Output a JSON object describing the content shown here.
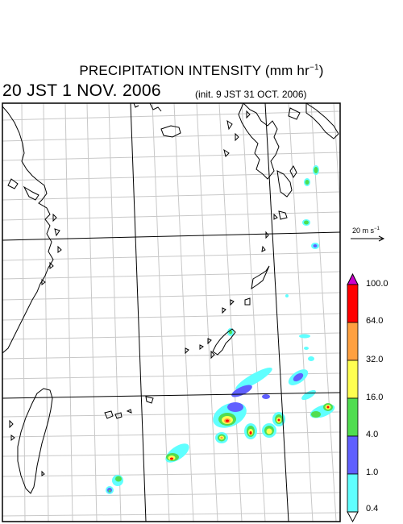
{
  "header": {
    "title": "PRECIPITATION INTENSITY (mm hr",
    "title_exp": "−1",
    "title_close": ")",
    "valid_time": "20 JST 1 NOV. 2006",
    "init_time": "(init. 9 JST 31 OCT. 2006)"
  },
  "wind_legend": {
    "label": "20 m s",
    "exp": "−1"
  },
  "colorbar": {
    "labels": [
      "100.0",
      "64.0",
      "32.0",
      "16.0",
      "4.0",
      "1.0",
      "0.4"
    ],
    "colors": [
      "#cc00cc",
      "#ff0000",
      "#ffa040",
      "#ffff50",
      "#50dd50",
      "#6060ff",
      "#60ffff"
    ]
  }
}
